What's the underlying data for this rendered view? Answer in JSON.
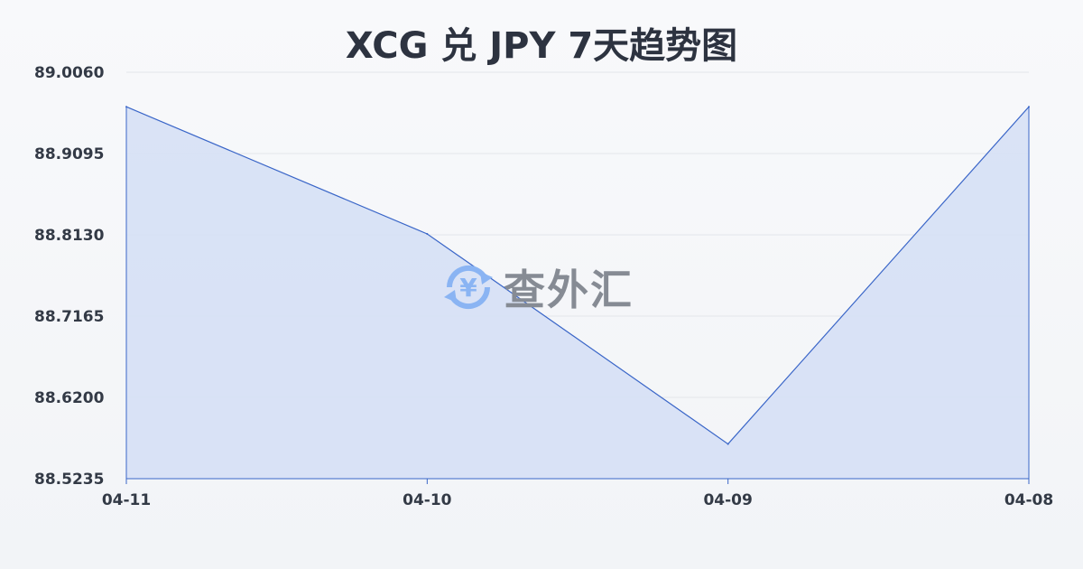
{
  "chart_data": {
    "type": "area",
    "title": "XCG 兑 JPY 7天趋势图",
    "xlabel": "",
    "ylabel": "",
    "categories": [
      "04-11",
      "04-10",
      "04-09",
      "04-08"
    ],
    "values": [
      88.965,
      88.8141,
      88.5647,
      88.965
    ],
    "ylim": [
      88.5235,
      89.006
    ],
    "yticks": [
      "89.0060",
      "88.9095",
      "88.8130",
      "88.7165",
      "88.6200",
      "88.5235"
    ],
    "grid": true,
    "colors": {
      "line": "#3a66c8",
      "fill": "#d6e0f5",
      "grid": "#e3e6ea"
    }
  },
  "watermark": {
    "text": "查外汇",
    "icon": "yen-exchange-icon",
    "icon_color": "#8ab4f3"
  }
}
